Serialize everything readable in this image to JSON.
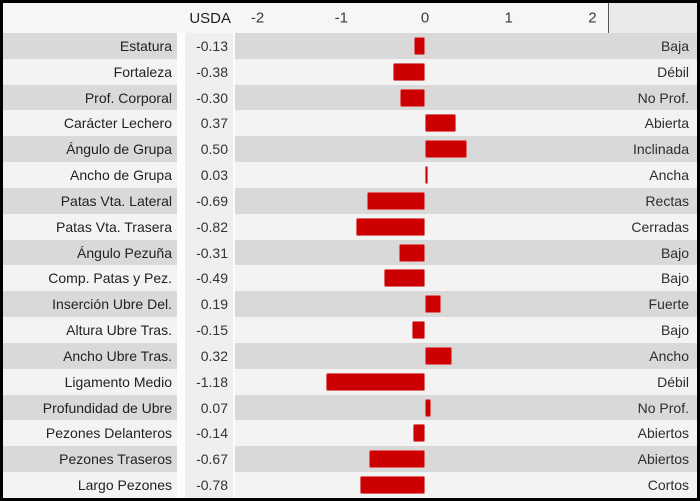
{
  "header": {
    "value_column_label": "USDA"
  },
  "colors": {
    "bar": "#cc0000",
    "bar_edge": "#dc6a6a",
    "row_shaded": "#d9d9d9",
    "row_light": "#f3f3f3",
    "value_column_bg": "#efefef",
    "header_bg": "#f5f6f6",
    "frame_border": "#000000"
  },
  "chart_data": {
    "type": "bar",
    "orientation": "horizontal",
    "title": "",
    "xlabel": "",
    "ylabel": "",
    "axis_ticks": [
      -2,
      -1,
      0,
      1,
      2
    ],
    "xlim": [
      -2.27,
      3.25
    ],
    "grid": false,
    "legend": "none",
    "value_column_header": "USDA",
    "categories": [
      "Estatura",
      "Fortaleza",
      "Prof. Corporal",
      "Carácter Lechero",
      "Ángulo de Grupa",
      "Ancho de Grupa",
      "Patas Vta. Lateral",
      "Patas Vta. Trasera",
      "Ángulo Pezuña",
      "Comp. Patas y Pez.",
      "Inserción Ubre Del.",
      "Altura Ubre Tras.",
      "Ancho Ubre Tras.",
      "Ligamento Medio",
      "Profundidad de Ubre",
      "Pezones Delanteros",
      "Pezones Traseros",
      "Largo Pezones"
    ],
    "values": [
      -0.13,
      -0.38,
      -0.3,
      0.37,
      0.5,
      0.03,
      -0.69,
      -0.82,
      -0.31,
      -0.49,
      0.19,
      -0.15,
      0.32,
      -1.18,
      0.07,
      -0.14,
      -0.67,
      -0.78
    ],
    "rows": [
      {
        "label": "Estatura",
        "value": -0.13,
        "value_display": "-0.13",
        "right_label": "Baja"
      },
      {
        "label": "Fortaleza",
        "value": -0.38,
        "value_display": "-0.38",
        "right_label": "Débil"
      },
      {
        "label": "Prof. Corporal",
        "value": -0.3,
        "value_display": "-0.30",
        "right_label": "No Prof."
      },
      {
        "label": "Carácter Lechero",
        "value": 0.37,
        "value_display": "0.37",
        "right_label": "Abierta"
      },
      {
        "label": "Ángulo de Grupa",
        "value": 0.5,
        "value_display": "0.50",
        "right_label": "Inclinada"
      },
      {
        "label": "Ancho de Grupa",
        "value": 0.03,
        "value_display": "0.03",
        "right_label": "Ancha"
      },
      {
        "label": "Patas Vta. Lateral",
        "value": -0.69,
        "value_display": "-0.69",
        "right_label": "Rectas"
      },
      {
        "label": "Patas Vta. Trasera",
        "value": -0.82,
        "value_display": "-0.82",
        "right_label": "Cerradas"
      },
      {
        "label": "Ángulo Pezuña",
        "value": -0.31,
        "value_display": "-0.31",
        "right_label": "Bajo"
      },
      {
        "label": "Comp. Patas y Pez.",
        "value": -0.49,
        "value_display": "-0.49",
        "right_label": "Bajo"
      },
      {
        "label": "Inserción Ubre Del.",
        "value": 0.19,
        "value_display": "0.19",
        "right_label": "Fuerte"
      },
      {
        "label": "Altura Ubre Tras.",
        "value": -0.15,
        "value_display": "-0.15",
        "right_label": "Bajo"
      },
      {
        "label": "Ancho Ubre Tras.",
        "value": 0.32,
        "value_display": "0.32",
        "right_label": "Ancho"
      },
      {
        "label": "Ligamento Medio",
        "value": -1.18,
        "value_display": "-1.18",
        "right_label": "Débil"
      },
      {
        "label": "Profundidad de Ubre",
        "value": 0.07,
        "value_display": "0.07",
        "right_label": "No Prof."
      },
      {
        "label": "Pezones Delanteros",
        "value": -0.14,
        "value_display": "-0.14",
        "right_label": "Abiertos"
      },
      {
        "label": "Pezones Traseros",
        "value": -0.67,
        "value_display": "-0.67",
        "right_label": "Abiertos"
      },
      {
        "label": "Largo Pezones",
        "value": -0.78,
        "value_display": "-0.78",
        "right_label": "Cortos"
      }
    ]
  }
}
